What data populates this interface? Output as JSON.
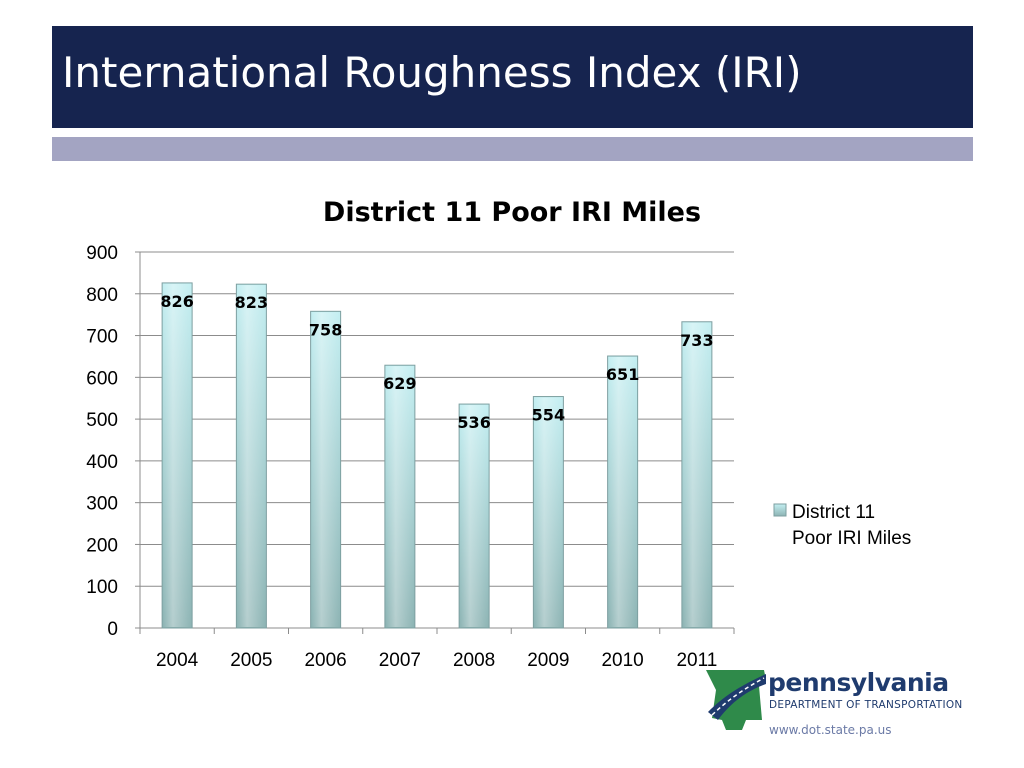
{
  "slide": {
    "title": "International Roughness Index (IRI)"
  },
  "chart_data": {
    "type": "bar",
    "title": "District 11 Poor IRI Miles",
    "xlabel": "",
    "ylabel": "",
    "categories": [
      "2004",
      "2005",
      "2006",
      "2007",
      "2008",
      "2009",
      "2010",
      "2011"
    ],
    "series": [
      {
        "name": "District 11 Poor IRI Miles",
        "values": [
          826,
          823,
          758,
          629,
          536,
          554,
          651,
          733
        ]
      }
    ],
    "data_labels": [
      "826",
      "823",
      "758",
      "629",
      "536",
      "554",
      "651",
      "733"
    ],
    "ylim": [
      0,
      900
    ],
    "yticks": [
      "0",
      "100",
      "200",
      "300",
      "400",
      "500",
      "600",
      "700",
      "800",
      "900"
    ],
    "grid": true,
    "legend": {
      "position": "right",
      "lines": [
        "District 11",
        "Poor IRI Miles"
      ]
    },
    "colors": {
      "bar_top": "#c4eff2",
      "bar_bottom": "#8db4b4",
      "bar_edge": "#7d9fa0",
      "grid": "#8c8c8c"
    }
  },
  "footer": {
    "brand_name": "pennsylvania",
    "brand_sub": "DEPARTMENT OF TRANSPORTATION",
    "url": "www.dot.state.pa.us",
    "logo_icon": "pa-keystone-road-icon",
    "colors": {
      "green": "#2f8a4a",
      "blue": "#1f3b6e"
    }
  }
}
